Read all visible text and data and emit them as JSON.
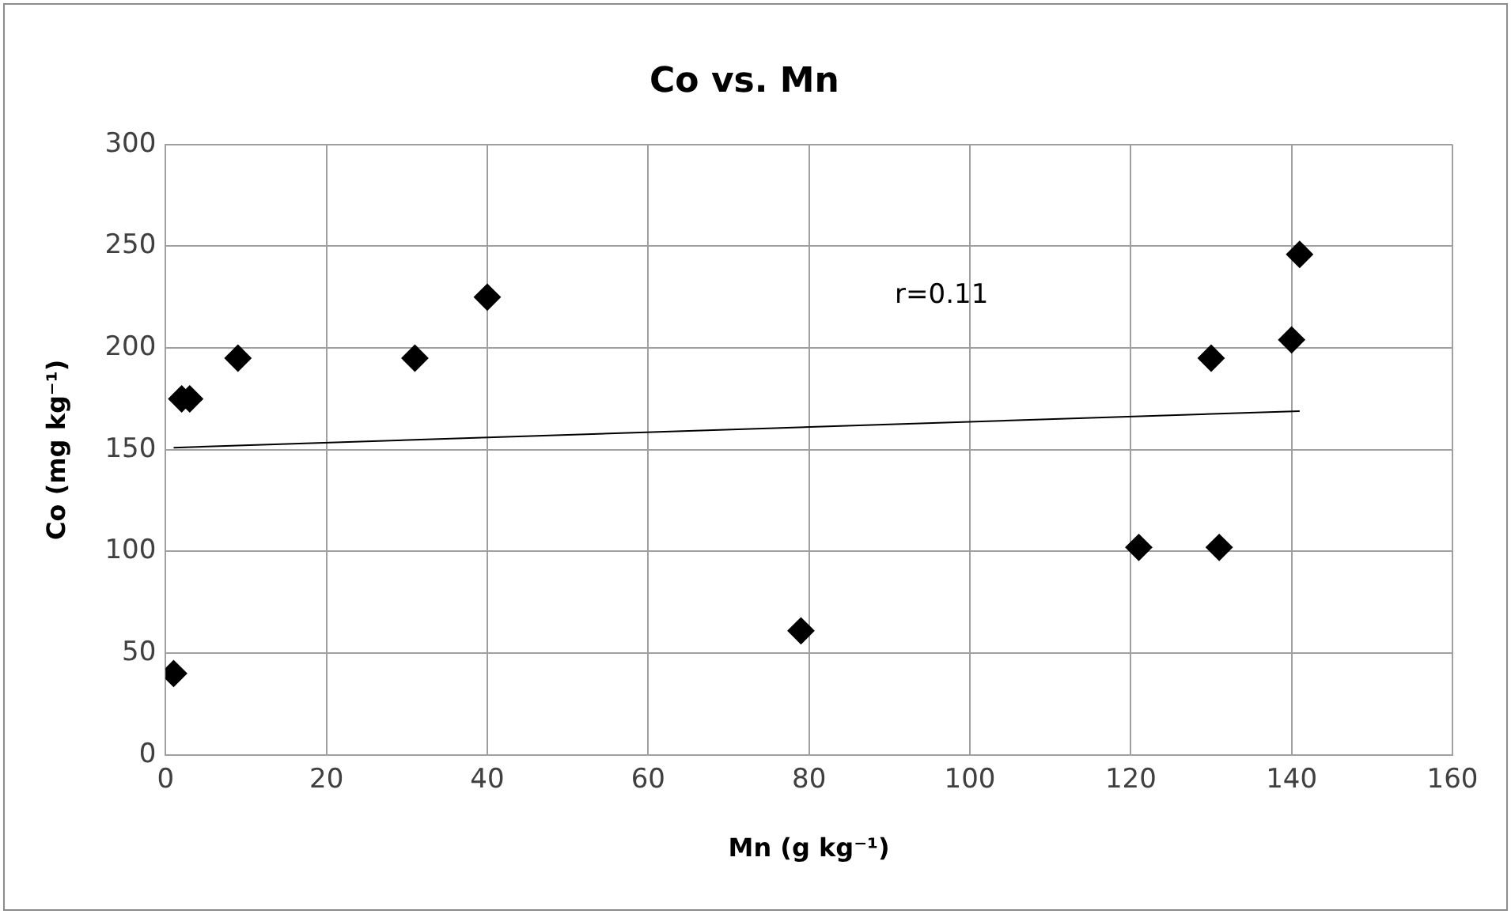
{
  "chart_data": {
    "type": "scatter",
    "title": "Co vs. Mn",
    "xlabel": "Mn (g kg⁻¹)",
    "ylabel": "Co (mg kg⁻¹)",
    "xlim": [
      0,
      160
    ],
    "xticks": [
      0,
      20,
      40,
      60,
      80,
      100,
      120,
      140,
      160
    ],
    "ylim": [
      0,
      300
    ],
    "yticks": [
      0,
      50,
      100,
      150,
      200,
      250,
      300
    ],
    "grid": true,
    "legend": false,
    "marker": "diamond",
    "series": [
      {
        "color": "#000000",
        "x": [
          1,
          2,
          3,
          9,
          31,
          40,
          79,
          121,
          131,
          130,
          140,
          141
        ],
        "values": [
          40,
          175,
          175,
          195,
          195,
          225,
          61,
          102,
          102,
          195,
          204,
          246
        ]
      },
      {
        "type": "line",
        "color": "#000000",
        "marker": "none",
        "x": [
          1,
          141
        ],
        "values": [
          151,
          169
        ]
      }
    ],
    "annotations": [
      "r=0.11"
    ]
  }
}
